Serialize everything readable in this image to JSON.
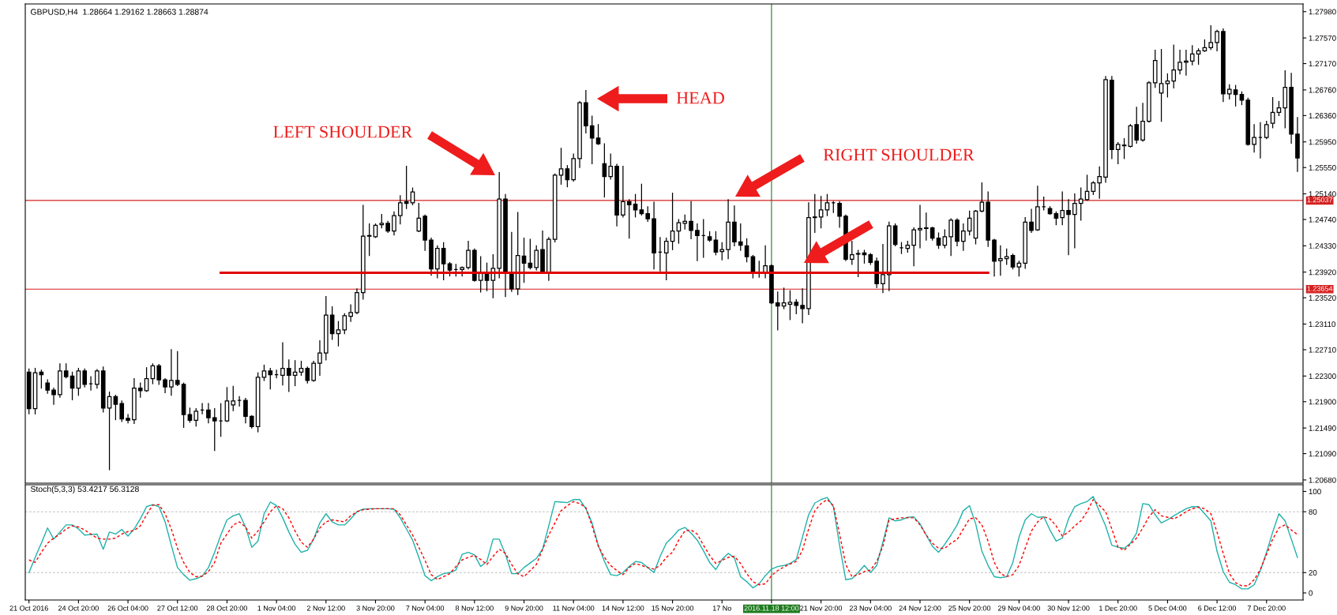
{
  "chart_data": [
    {
      "type": "candlestick",
      "title": "GBPUSD,H4  1.28664 1.29162 1.28663 1.28874",
      "color": "#000000",
      "categories": [
        "21 Oct 2016",
        null,
        null,
        null,
        null,
        null,
        null,
        null,
        "24 Oct 20:00",
        null,
        null,
        null,
        null,
        null,
        null,
        null,
        "26 Oct 04:00",
        null,
        null,
        null,
        null,
        null,
        null,
        null,
        "27 Oct 12:00",
        null,
        null,
        null,
        null,
        null,
        null,
        null,
        "28 Oct 20:00",
        null,
        null,
        null,
        null,
        null,
        null,
        null,
        "1 Nov 04:00",
        null,
        null,
        null,
        null,
        null,
        null,
        null,
        "2 Nov 12:00",
        null,
        null,
        null,
        null,
        null,
        null,
        null,
        "3 Nov 20:00",
        null,
        null,
        null,
        null,
        null,
        null,
        null,
        "7 Nov 04:00",
        null,
        null,
        null,
        null,
        null,
        null,
        null,
        "8 Nov 12:00",
        null,
        null,
        null,
        null,
        null,
        null,
        null,
        "9 Nov 20:00",
        null,
        null,
        null,
        null,
        null,
        null,
        null,
        "11 Nov 04:00",
        null,
        null,
        null,
        null,
        null,
        null,
        null,
        "14 Nov 12:00",
        null,
        null,
        null,
        null,
        null,
        null,
        null,
        "15 Nov 20:00",
        null,
        null,
        null,
        null,
        null,
        null,
        null,
        "17 No",
        null,
        null,
        null,
        null,
        null,
        null,
        null,
        "2016.11.18 12:00",
        null,
        null,
        null,
        null,
        null,
        null,
        null,
        "21 Nov 20:00",
        null,
        null,
        null,
        null,
        null,
        null,
        null,
        "23 Nov 04:00",
        null,
        null,
        null,
        null,
        null,
        null,
        null,
        "24 Nov 12:00",
        null,
        null,
        null,
        null,
        null,
        null,
        null,
        "25 Nov 20:00",
        null,
        null,
        null,
        null,
        null,
        null,
        null,
        "29 Nov 04:00",
        null,
        null,
        null,
        null,
        null,
        null,
        null,
        "30 Nov 12:00",
        null,
        null,
        null,
        null,
        null,
        null,
        null,
        "1 Dec 20:00",
        null,
        null,
        null,
        null,
        null,
        null,
        null,
        "5 Dec 04:00",
        null,
        null,
        null,
        null,
        null,
        null,
        null,
        "6 Dec 12:00",
        null,
        null,
        null,
        null,
        null,
        null,
        null,
        "7 Dec 20:00",
        null,
        null,
        null,
        null,
        null
      ],
      "ohlc": [
        [
          1.2236,
          1.2241,
          1.2171,
          1.2179
        ],
        [
          1.2179,
          1.2242,
          1.2171,
          1.2235
        ],
        [
          1.2236,
          1.2239,
          1.2211,
          1.2232
        ],
        [
          1.2219,
          1.2224,
          1.2203,
          1.2208
        ],
        [
          1.2208,
          1.2211,
          1.2186,
          1.2201
        ],
        [
          1.2201,
          1.2249,
          1.2197,
          1.2238
        ],
        [
          1.2238,
          1.2249,
          1.2227,
          1.2229
        ],
        [
          1.223,
          1.2236,
          1.2193,
          1.2211
        ],
        [
          1.2211,
          1.2242,
          1.22,
          1.2238
        ],
        [
          1.2238,
          1.2241,
          1.2213,
          1.2217
        ],
        [
          1.2218,
          1.2229,
          1.2208,
          1.2218
        ],
        [
          1.2217,
          1.224,
          1.2211,
          1.2238
        ],
        [
          1.2238,
          1.2244,
          1.2174,
          1.218
        ],
        [
          1.218,
          1.2205,
          1.2084,
          1.2198
        ],
        [
          1.2198,
          1.22,
          1.2162,
          1.2186
        ],
        [
          1.2187,
          1.2191,
          1.2159,
          1.2163
        ],
        [
          1.2164,
          1.217,
          1.2157,
          1.2161
        ],
        [
          1.2162,
          1.2226,
          1.2156,
          1.2211
        ],
        [
          1.2211,
          1.2219,
          1.2197,
          1.2207
        ],
        [
          1.2207,
          1.2243,
          1.2206,
          1.2226
        ],
        [
          1.2226,
          1.2249,
          1.2218,
          1.2246
        ],
        [
          1.2246,
          1.2248,
          1.2217,
          1.2224
        ],
        [
          1.2224,
          1.2226,
          1.2204,
          1.2213
        ],
        [
          1.2213,
          1.2271,
          1.22,
          1.2223
        ],
        [
          1.2223,
          1.2268,
          1.2215,
          1.2217
        ],
        [
          1.2217,
          1.2219,
          1.215,
          1.217
        ],
        [
          1.217,
          1.218,
          1.2158,
          1.2161
        ],
        [
          1.2161,
          1.2179,
          1.2152,
          1.2175
        ],
        [
          1.2177,
          1.2187,
          1.2171,
          1.2177
        ],
        [
          1.2177,
          1.2187,
          1.2157,
          1.2165
        ],
        [
          1.2165,
          1.2179,
          1.2114,
          1.216
        ],
        [
          1.216,
          1.2187,
          1.2136,
          1.216
        ],
        [
          1.216,
          1.2212,
          1.2159,
          1.2191
        ],
        [
          1.2185,
          1.2214,
          1.2176,
          1.2191
        ],
        [
          1.2192,
          1.2198,
          1.2183,
          1.2192
        ],
        [
          1.2192,
          1.2195,
          1.2157,
          1.2167
        ],
        [
          1.2167,
          1.2168,
          1.2149,
          1.2151
        ],
        [
          1.2151,
          1.2235,
          1.2143,
          1.2228
        ],
        [
          1.2228,
          1.2247,
          1.2223,
          1.2238
        ],
        [
          1.2238,
          1.2242,
          1.221,
          1.2232
        ],
        [
          1.2232,
          1.2239,
          1.2227,
          1.2232
        ],
        [
          1.2231,
          1.2282,
          1.2216,
          1.2242
        ],
        [
          1.2242,
          1.2255,
          1.2206,
          1.2231
        ],
        [
          1.2231,
          1.2254,
          1.2215,
          1.2236
        ],
        [
          1.2236,
          1.2253,
          1.2231,
          1.2242
        ],
        [
          1.2242,
          1.2244,
          1.2219,
          1.2223
        ],
        [
          1.2223,
          1.2253,
          1.2222,
          1.225
        ],
        [
          1.225,
          1.2285,
          1.2231,
          1.2266
        ],
        [
          1.2266,
          1.2354,
          1.2255,
          1.2325
        ],
        [
          1.2325,
          1.2338,
          1.2287,
          1.2296
        ],
        [
          1.2296,
          1.2315,
          1.2277,
          1.2302
        ],
        [
          1.2302,
          1.2327,
          1.2296,
          1.2324
        ],
        [
          1.2323,
          1.2341,
          1.2315,
          1.2329
        ],
        [
          1.2329,
          1.2366,
          1.2327,
          1.236
        ],
        [
          1.236,
          1.2496,
          1.235,
          1.2448
        ],
        [
          1.2448,
          1.2467,
          1.2418,
          1.2449
        ],
        [
          1.2447,
          1.2467,
          1.2446,
          1.2465
        ],
        [
          1.2466,
          1.2482,
          1.2461,
          1.2468
        ],
        [
          1.2468,
          1.2471,
          1.2454,
          1.2456
        ],
        [
          1.2456,
          1.2486,
          1.245,
          1.248
        ],
        [
          1.248,
          1.2511,
          1.2467,
          1.25
        ],
        [
          1.2502,
          1.2557,
          1.2491,
          1.2499
        ],
        [
          1.25,
          1.2523,
          1.2497,
          1.2517
        ],
        [
          1.2456,
          1.2499,
          1.2455,
          1.2476
        ],
        [
          1.2479,
          1.2481,
          1.2426,
          1.2442
        ],
        [
          1.2442,
          1.2445,
          1.2387,
          1.2397
        ],
        [
          1.2397,
          1.2433,
          1.2383,
          1.2429
        ],
        [
          1.2429,
          1.2438,
          1.238,
          1.2405
        ],
        [
          1.2405,
          1.2407,
          1.2386,
          1.2395
        ],
        [
          1.2396,
          1.2404,
          1.2386,
          1.2396
        ],
        [
          1.2396,
          1.24,
          1.2386,
          1.2399
        ],
        [
          1.2399,
          1.244,
          1.2397,
          1.2426
        ],
        [
          1.2426,
          1.2428,
          1.2378,
          1.2379
        ],
        [
          1.2379,
          1.2416,
          1.2361,
          1.239
        ],
        [
          1.239,
          1.2406,
          1.2363,
          1.2379
        ],
        [
          1.2379,
          1.2419,
          1.2352,
          1.2398
        ],
        [
          1.2398,
          1.2547,
          1.2383,
          1.2506
        ],
        [
          1.2506,
          1.2513,
          1.2354,
          1.2391
        ],
        [
          1.2391,
          1.2454,
          1.2362,
          1.2366
        ],
        [
          1.2366,
          1.2485,
          1.2357,
          1.2418
        ],
        [
          1.2417,
          1.2445,
          1.2376,
          1.2406
        ],
        [
          1.2406,
          1.2443,
          1.2397,
          1.2399
        ],
        [
          1.2399,
          1.2433,
          1.2395,
          1.2426
        ],
        [
          1.2427,
          1.2456,
          1.239,
          1.2391
        ],
        [
          1.2391,
          1.2446,
          1.2379,
          1.2443
        ],
        [
          1.2443,
          1.2545,
          1.2439,
          1.2543
        ],
        [
          1.2543,
          1.2585,
          1.2529,
          1.2553
        ],
        [
          1.2553,
          1.2558,
          1.2525,
          1.2536
        ],
        [
          1.2536,
          1.2576,
          1.2534,
          1.2569
        ],
        [
          1.2569,
          1.2658,
          1.2555,
          1.2656
        ],
        [
          1.2656,
          1.2675,
          1.2609,
          1.262
        ],
        [
          1.262,
          1.2635,
          1.2561,
          1.2601
        ],
        [
          1.2601,
          1.2622,
          1.2591,
          1.2592
        ],
        [
          1.2561,
          1.2592,
          1.2509,
          1.2541
        ],
        [
          1.2541,
          1.2576,
          1.2537,
          1.2557
        ],
        [
          1.2557,
          1.256,
          1.2464,
          1.2481
        ],
        [
          1.2481,
          1.2557,
          1.2478,
          1.2502
        ],
        [
          1.2502,
          1.2505,
          1.2445,
          1.2497
        ],
        [
          1.2498,
          1.2513,
          1.2478,
          1.2489
        ],
        [
          1.2489,
          1.2529,
          1.2481,
          1.2483
        ],
        [
          1.2483,
          1.2494,
          1.2471,
          1.2475
        ],
        [
          1.2475,
          1.2501,
          1.2397,
          1.2422
        ],
        [
          1.2423,
          1.2446,
          1.2394,
          1.2423
        ],
        [
          1.2422,
          1.2445,
          1.238,
          1.244
        ],
        [
          1.244,
          1.2515,
          1.2427,
          1.2456
        ],
        [
          1.2456,
          1.2474,
          1.2437,
          1.2469
        ],
        [
          1.2468,
          1.2481,
          1.2459,
          1.2471
        ],
        [
          1.2471,
          1.2502,
          1.2444,
          1.2457
        ],
        [
          1.2457,
          1.2467,
          1.241,
          1.2449
        ],
        [
          1.2449,
          1.2474,
          1.2415,
          1.2449
        ],
        [
          1.2447,
          1.2455,
          1.244,
          1.2442
        ],
        [
          1.2442,
          1.2455,
          1.2419,
          1.2423
        ],
        [
          1.2424,
          1.2438,
          1.2411,
          1.2427
        ],
        [
          1.2427,
          1.2505,
          1.2413,
          1.247
        ],
        [
          1.247,
          1.2495,
          1.2433,
          1.2439
        ],
        [
          1.2439,
          1.2467,
          1.2426,
          1.2434
        ],
        [
          1.2433,
          1.2444,
          1.2408,
          1.2416
        ],
        [
          1.2416,
          1.2418,
          1.2383,
          1.2391
        ],
        [
          1.2391,
          1.2409,
          1.2384,
          1.2392
        ],
        [
          1.2391,
          1.2433,
          1.2383,
          1.2402
        ],
        [
          1.2402,
          1.2403,
          1.2343,
          1.2344
        ],
        [
          1.2344,
          1.2361,
          1.2302,
          1.2339
        ],
        [
          1.2339,
          1.2367,
          1.2335,
          1.2344
        ],
        [
          1.2342,
          1.2363,
          1.2318,
          1.2345
        ],
        [
          1.2345,
          1.2349,
          1.2327,
          1.234
        ],
        [
          1.234,
          1.2366,
          1.2313,
          1.2335
        ],
        [
          1.2335,
          1.25,
          1.2326,
          1.2477
        ],
        [
          1.2477,
          1.2513,
          1.2454,
          1.2478
        ],
        [
          1.2478,
          1.251,
          1.2461,
          1.2489
        ],
        [
          1.2489,
          1.2513,
          1.248,
          1.25
        ],
        [
          1.25,
          1.2502,
          1.2485,
          1.25
        ],
        [
          1.2499,
          1.2502,
          1.2462,
          1.2479
        ],
        [
          1.2479,
          1.2481,
          1.241,
          1.2412
        ],
        [
          1.2412,
          1.244,
          1.2404,
          1.2419
        ],
        [
          1.242,
          1.2426,
          1.2385,
          1.2421
        ],
        [
          1.2422,
          1.2426,
          1.2406,
          1.2419
        ],
        [
          1.2419,
          1.2421,
          1.2404,
          1.2407
        ],
        [
          1.2409,
          1.2414,
          1.2368,
          1.2374
        ],
        [
          1.2374,
          1.2435,
          1.236,
          1.2388
        ],
        [
          1.2388,
          1.247,
          1.2363,
          1.2464
        ],
        [
          1.2464,
          1.2467,
          1.2433,
          1.2435
        ],
        [
          1.243,
          1.2438,
          1.2421,
          1.243
        ],
        [
          1.2429,
          1.244,
          1.2423,
          1.2434
        ],
        [
          1.2434,
          1.2461,
          1.2402,
          1.2458
        ],
        [
          1.2458,
          1.2496,
          1.243,
          1.246
        ],
        [
          1.246,
          1.2484,
          1.2442,
          1.2461
        ],
        [
          1.2461,
          1.2462,
          1.2442,
          1.2445
        ],
        [
          1.2445,
          1.2453,
          1.2429,
          1.2434
        ],
        [
          1.2434,
          1.2458,
          1.243,
          1.2447
        ],
        [
          1.2447,
          1.2475,
          1.2418,
          1.2473
        ],
        [
          1.2473,
          1.2475,
          1.2433,
          1.244
        ],
        [
          1.244,
          1.2467,
          1.2426,
          1.2456
        ],
        [
          1.2456,
          1.2487,
          1.245,
          1.2476
        ],
        [
          1.2445,
          1.2488,
          1.2436,
          1.2487
        ],
        [
          1.2487,
          1.2531,
          1.2486,
          1.2501
        ],
        [
          1.2501,
          1.2517,
          1.2432,
          1.2442
        ],
        [
          1.2442,
          1.2443,
          1.2386,
          1.2409
        ],
        [
          1.241,
          1.2433,
          1.2387,
          1.2413
        ],
        [
          1.2413,
          1.2428,
          1.2404,
          1.2416
        ],
        [
          1.2418,
          1.242,
          1.2397,
          1.24
        ],
        [
          1.24,
          1.2409,
          1.2386,
          1.2406
        ],
        [
          1.2406,
          1.2477,
          1.2398,
          1.247
        ],
        [
          1.247,
          1.249,
          1.2454,
          1.2457
        ],
        [
          1.2458,
          1.2526,
          1.2457,
          1.2494
        ],
        [
          1.2494,
          1.2509,
          1.2489,
          1.2494
        ],
        [
          1.2491,
          1.2494,
          1.2482,
          1.2483
        ],
        [
          1.2483,
          1.2486,
          1.2466,
          1.2476
        ],
        [
          1.2477,
          1.2517,
          1.2466,
          1.2488
        ],
        [
          1.2488,
          1.2505,
          1.2419,
          1.2482
        ],
        [
          1.2482,
          1.2514,
          1.243,
          1.2499
        ],
        [
          1.2499,
          1.2523,
          1.2473,
          1.2506
        ],
        [
          1.2505,
          1.2543,
          1.2504,
          1.2518
        ],
        [
          1.2518,
          1.2533,
          1.2513,
          1.2531
        ],
        [
          1.2531,
          1.2556,
          1.2507,
          1.2541
        ],
        [
          1.254,
          1.2697,
          1.2532,
          1.2692
        ],
        [
          1.2691,
          1.2697,
          1.2569,
          1.2583
        ],
        [
          1.2583,
          1.2594,
          1.2561,
          1.2591
        ],
        [
          1.2589,
          1.26,
          1.2569,
          1.259
        ],
        [
          1.2588,
          1.2622,
          1.2587,
          1.262
        ],
        [
          1.2622,
          1.2649,
          1.2593,
          1.2598
        ],
        [
          1.2598,
          1.2655,
          1.2596,
          1.2627
        ],
        [
          1.2627,
          1.2689,
          1.2626,
          1.2687
        ],
        [
          1.2687,
          1.2738,
          1.268,
          1.2722
        ],
        [
          1.2671,
          1.2739,
          1.2627,
          1.2686
        ],
        [
          1.2686,
          1.2701,
          1.2665,
          1.269
        ],
        [
          1.269,
          1.2746,
          1.2679,
          1.2707
        ],
        [
          1.2707,
          1.2738,
          1.2701,
          1.2719
        ],
        [
          1.2719,
          1.2738,
          1.2699,
          1.2721
        ],
        [
          1.2721,
          1.2745,
          1.2715,
          1.2732
        ],
        [
          1.2732,
          1.274,
          1.2716,
          1.2737
        ],
        [
          1.2737,
          1.2754,
          1.2736,
          1.2742
        ],
        [
          1.2742,
          1.2776,
          1.2739,
          1.275
        ],
        [
          1.275,
          1.2769,
          1.2737,
          1.2767
        ],
        [
          1.2767,
          1.2771,
          1.2658,
          1.267
        ],
        [
          1.267,
          1.2684,
          1.2662,
          1.2677
        ],
        [
          1.2676,
          1.2683,
          1.2651,
          1.2669
        ],
        [
          1.2669,
          1.2673,
          1.2653,
          1.266
        ],
        [
          1.266,
          1.2663,
          1.259,
          1.2591
        ],
        [
          1.2591,
          1.2622,
          1.2579,
          1.2602
        ],
        [
          1.2602,
          1.2625,
          1.257,
          1.2602
        ],
        [
          1.2602,
          1.2627,
          1.26,
          1.2622
        ],
        [
          1.2624,
          1.2664,
          1.2617,
          1.2641
        ],
        [
          1.2641,
          1.2658,
          1.2636,
          1.2648
        ],
        [
          1.2648,
          1.2706,
          1.2617,
          1.268
        ],
        [
          1.268,
          1.2702,
          1.2593,
          1.2607
        ],
        [
          1.2607,
          1.2633,
          1.2549,
          1.257
        ]
      ],
      "series": [
        {
          "type": "line",
          "color": "#e00000",
          "values": [
            null,
            null,
            null,
            null,
            null,
            null,
            null,
            null,
            null,
            null,
            null,
            null,
            null,
            null,
            null,
            null,
            null,
            null,
            null,
            null,
            null,
            null,
            null,
            null,
            null,
            null,
            null,
            null,
            null,
            null,
            null,
            1.2391,
            1.2391,
            1.2391,
            1.2391,
            1.2391,
            1.2391,
            1.2391,
            1.2391,
            1.2391,
            1.2391,
            1.2391,
            1.2391,
            1.2391,
            1.2391,
            1.2391,
            1.2391,
            1.2391,
            1.2391,
            1.2391,
            1.2391,
            1.2391,
            1.2391,
            1.2391,
            1.2391,
            1.2391,
            1.2391,
            1.2391,
            1.2391,
            1.2391,
            1.2391,
            1.2391,
            1.2391,
            1.2391,
            1.2391,
            1.2391,
            1.2391,
            1.2391,
            1.2391,
            1.2391,
            1.2391,
            1.2391,
            1.2391,
            1.2391,
            1.2391,
            1.2391,
            1.2391,
            1.2391,
            1.2391,
            1.2391,
            1.2391,
            1.2391,
            1.2391,
            1.2391,
            1.2391,
            1.2391,
            1.2391,
            1.2391,
            1.2391,
            1.2391,
            1.2391,
            1.2391,
            1.2391,
            1.2391,
            1.2391,
            1.2391,
            1.2391,
            1.2391,
            1.2391,
            1.2391,
            1.2391,
            1.2391,
            1.2391,
            1.2391,
            1.2391,
            1.2391,
            1.2391,
            1.2391,
            1.2391,
            1.2391,
            1.2391,
            1.2391,
            1.2391,
            1.2391,
            1.2391,
            1.2391,
            1.2391,
            1.2391,
            1.2391,
            1.2391,
            1.2391,
            1.2391,
            1.2391,
            1.2391,
            1.2391,
            1.2391,
            1.2391,
            1.2391,
            1.2391,
            1.2391,
            1.2391,
            1.2391,
            1.2391,
            1.2391,
            1.2391,
            1.2391,
            1.2391,
            1.2391,
            1.2391,
            1.2391,
            1.2391,
            1.2391,
            1.2391,
            1.2391,
            1.2391,
            1.2391,
            1.2391,
            1.2391,
            1.2391,
            1.2391,
            1.2391,
            1.2391,
            1.2391,
            1.2391,
            1.2391,
            1.2391,
            null,
            null,
            null,
            null,
            null,
            null,
            null,
            null,
            null,
            null,
            null,
            null,
            null,
            null,
            null,
            null,
            null,
            null,
            null,
            null,
            null,
            null,
            null,
            null,
            null,
            null,
            null,
            null,
            null,
            null,
            null,
            null,
            null,
            null,
            null,
            null,
            null,
            null,
            null,
            null,
            null,
            null,
            null,
            null,
            null,
            null,
            null,
            null,
            null,
            null
          ]
        }
      ],
      "ylim": [
        1.2063,
        1.281
      ],
      "yticks": [
        {
          "value": 1.2798,
          "label": "1.27980"
        },
        {
          "value": 1.2757,
          "label": "1.27570"
        },
        {
          "value": 1.2717,
          "label": "1.27170"
        },
        {
          "value": 1.2676,
          "label": "1.26760"
        },
        {
          "value": 1.2636,
          "label": "1.26360"
        },
        {
          "value": 1.2595,
          "label": "1.25950"
        },
        {
          "value": 1.2555,
          "label": "1.25550"
        },
        {
          "value": 1.2514,
          "label": "1.25140"
        },
        {
          "value": 1.2474,
          "label": "1.24740"
        },
        {
          "value": 1.2433,
          "label": "1.24330"
        },
        {
          "value": 1.2392,
          "label": "1.23920"
        },
        {
          "value": 1.2352,
          "label": "1.23520"
        },
        {
          "value": 1.2311,
          "label": "1.23110"
        },
        {
          "value": 1.2271,
          "label": "1.22710"
        },
        {
          "value": 1.223,
          "label": "1.22300"
        },
        {
          "value": 1.219,
          "label": "1.21900"
        },
        {
          "value": 1.2149,
          "label": "1.21490"
        },
        {
          "value": 1.2109,
          "label": "1.21090"
        },
        {
          "value": 1.2068,
          "label": "1.20680"
        }
      ],
      "tick_labels": "y",
      "ref_lines": [
        {
          "axis": "y",
          "value": 1.25037,
          "label": "1.25037",
          "color": "#d42020"
        },
        {
          "axis": "y",
          "value": 1.23654,
          "label": "1.23654",
          "color": "#d42020"
        },
        {
          "axis": "x",
          "value": "2016.11.18 12:00",
          "color": "#1e7b1e"
        }
      ],
      "annotations": [
        "LEFT SHOULDER",
        "HEAD",
        "RIGHT SHOULDER"
      ]
    },
    {
      "type": "line",
      "title": "Stoch(5,3,3) 53.4217 56.3128",
      "categories": [
        "21 Oct 2016",
        null,
        null,
        null,
        null,
        null,
        null,
        null,
        "24 Oct 20:00",
        null,
        null,
        null,
        null,
        null,
        null,
        null,
        "26 Oct 04:00",
        null,
        null,
        null,
        null,
        null,
        null,
        null,
        "27 Oct 12:00",
        null,
        null,
        null,
        null,
        null,
        null,
        null,
        "28 Oct 20:00",
        null,
        null,
        null,
        null,
        null,
        null,
        null,
        "1 Nov 04:00",
        null,
        null,
        null,
        null,
        null,
        null,
        null,
        "2 Nov 12:00",
        null,
        null,
        null,
        null,
        null,
        null,
        null,
        "3 Nov 20:00",
        null,
        null,
        null,
        null,
        null,
        null,
        null,
        "7 Nov 04:00",
        null,
        null,
        null,
        null,
        null,
        null,
        null,
        "8 Nov 12:00",
        null,
        null,
        null,
        null,
        null,
        null,
        null,
        "9 Nov 20:00",
        null,
        null,
        null,
        null,
        null,
        null,
        null,
        "11 Nov 04:00",
        null,
        null,
        null,
        null,
        null,
        null,
        null,
        "14 Nov 12:00",
        null,
        null,
        null,
        null,
        null,
        null,
        null,
        "15 Nov 20:00",
        null,
        null,
        null,
        null,
        null,
        null,
        null,
        "17 No",
        null,
        null,
        null,
        null,
        null,
        null,
        null,
        "2016.11.18 12:00",
        null,
        null,
        null,
        null,
        null,
        null,
        null,
        "21 Nov 20:00",
        null,
        null,
        null,
        null,
        null,
        null,
        null,
        "23 Nov 04:00",
        null,
        null,
        null,
        null,
        null,
        null,
        null,
        "24 Nov 12:00",
        null,
        null,
        null,
        null,
        null,
        null,
        null,
        "25 Nov 20:00",
        null,
        null,
        null,
        null,
        null,
        null,
        null,
        "29 Nov 04:00",
        null,
        null,
        null,
        null,
        null,
        null,
        null,
        "30 Nov 12:00",
        null,
        null,
        null,
        null,
        null,
        null,
        null,
        "1 Dec 20:00",
        null,
        null,
        null,
        null,
        null,
        null,
        null,
        "5 Dec 04:00",
        null,
        null,
        null,
        null,
        null,
        null,
        null,
        "6 Dec 12:00",
        null,
        null,
        null,
        null,
        null,
        null,
        null,
        "7 Dec 20:00",
        null,
        null,
        null,
        null,
        null
      ],
      "series": [
        {
          "color": "#20b2aa",
          "line_style": "solid",
          "values": [
            20,
            35,
            49,
            64,
            53,
            60,
            67,
            67,
            63,
            57,
            57.5,
            58,
            43,
            60,
            58,
            62.5,
            56,
            63,
            73,
            85,
            87,
            85,
            70,
            47,
            25,
            18,
            12.5,
            14,
            16.5,
            25,
            40,
            57,
            72,
            76,
            78,
            65,
            45,
            51,
            78,
            89.5,
            86,
            74,
            60,
            48,
            40,
            42,
            53,
            69,
            78,
            70,
            67,
            67,
            73,
            80,
            82.5,
            83,
            83,
            83,
            83,
            82.5,
            74,
            63,
            52,
            35,
            17,
            12,
            16,
            19,
            20,
            22.5,
            38,
            40,
            37.5,
            26,
            31,
            53,
            53,
            38,
            19,
            19,
            25,
            29.5,
            34,
            43,
            66,
            90,
            89.5,
            89,
            92,
            92,
            83,
            69,
            47,
            31,
            18,
            17,
            20,
            26,
            31,
            30,
            25,
            20,
            36,
            49,
            55,
            62,
            64.5,
            59,
            52,
            41.5,
            30,
            23,
            33,
            39,
            34.5,
            16,
            11,
            5,
            9,
            17,
            23.5,
            26,
            27,
            29,
            33,
            55,
            77,
            88.5,
            92,
            94,
            85,
            47,
            13,
            14,
            20,
            27,
            20,
            27,
            50,
            74,
            71,
            72,
            74.5,
            75,
            68,
            57,
            46,
            40,
            48,
            57,
            67,
            81,
            86,
            68,
            41,
            27,
            16,
            15,
            16,
            30,
            55,
            72,
            78,
            74.5,
            75,
            62,
            51,
            54,
            73,
            85,
            88,
            90,
            95,
            80,
            66,
            47,
            45,
            44,
            49,
            59,
            88,
            87,
            77,
            69,
            72,
            76,
            79.5,
            83,
            85,
            85,
            78,
            71,
            41,
            21,
            10.5,
            8,
            4,
            4,
            8,
            22,
            40,
            60,
            78,
            71,
            53,
            35
          ]
        },
        {
          "color": "#ff0000",
          "line_style": "dashed",
          "values": [
            32.5,
            30,
            40,
            49,
            54,
            58,
            63,
            66,
            65,
            62,
            58,
            54,
            53,
            53,
            54,
            58,
            60.5,
            61.5,
            66,
            77,
            86.5,
            87,
            78,
            63,
            44,
            30,
            20,
            16,
            16.5,
            21,
            30,
            49,
            58,
            67,
            70,
            65,
            54,
            61,
            70,
            80,
            86,
            83,
            74,
            61,
            50,
            45,
            53,
            64,
            70,
            72,
            71,
            70,
            76,
            80,
            82,
            82.5,
            83,
            83,
            83,
            83,
            77,
            67,
            57,
            45,
            32,
            18,
            13,
            16,
            19,
            26,
            32.5,
            35,
            37,
            33,
            28,
            36,
            43,
            39,
            28,
            19,
            16,
            22,
            28,
            43,
            57,
            69,
            81,
            86,
            90,
            88,
            84,
            66,
            46,
            35,
            27,
            22,
            18,
            25,
            29,
            27,
            25,
            23.5,
            27,
            35,
            40,
            52,
            61,
            62,
            58,
            47,
            37,
            29,
            32,
            35,
            36,
            29,
            19,
            11,
            8,
            9,
            17,
            22,
            25.5,
            28.5,
            31,
            42,
            63,
            81,
            88,
            92,
            86,
            58,
            28,
            16,
            18,
            21,
            22.5,
            31,
            46,
            72,
            73,
            74,
            74,
            74,
            67,
            57,
            49,
            44,
            44,
            49,
            52.5,
            63,
            73,
            74,
            67,
            51,
            30,
            19,
            16,
            18,
            27,
            44,
            61,
            70,
            75,
            73,
            66,
            56,
            60,
            66,
            71,
            80,
            92,
            86,
            80,
            63,
            45,
            42,
            48,
            54,
            64,
            75,
            82,
            76,
            74.5,
            73,
            76,
            80,
            83,
            84.5,
            83,
            78,
            60,
            39,
            19,
            10,
            7,
            7,
            13,
            23,
            38,
            53,
            64,
            67,
            62,
            57.5
          ]
        }
      ],
      "ylim": [
        -7,
        106.6
      ],
      "yticks": [
        0,
        20,
        80,
        100
      ],
      "ref_lines": [
        {
          "axis": "y",
          "value": 20,
          "color": "#c0c0c0",
          "line_style": "dashed"
        },
        {
          "axis": "y",
          "value": 80,
          "color": "#c0c0c0",
          "line_style": "dashed"
        },
        {
          "axis": "x",
          "value": "2016.11.18 12:00",
          "color": "#1e7b1e"
        }
      ]
    }
  ]
}
